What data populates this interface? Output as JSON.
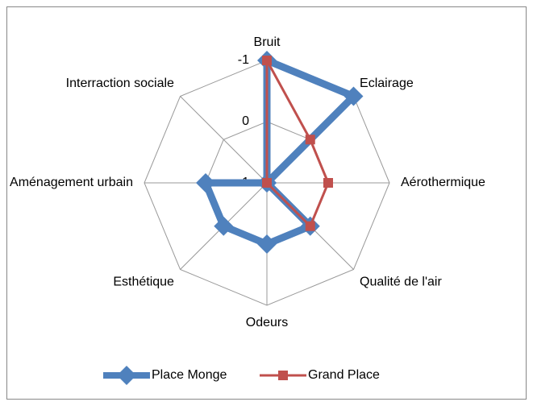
{
  "chart_data": {
    "type": "radar",
    "categories": [
      "Bruit",
      "Eclairage",
      "Aérothermique",
      "Qualité de l'air",
      "Odeurs",
      "Esthétique",
      "Aménagement urbain",
      "Interraction sociale"
    ],
    "series": [
      {
        "name": "Place Monge",
        "color": "#4f81bd",
        "marker": "diamond",
        "values": [
          -1,
          -1,
          1,
          0,
          0,
          0,
          0,
          1
        ]
      },
      {
        "name": "Grand Place",
        "color": "#c0504d",
        "marker": "square",
        "values": [
          -1,
          0,
          0,
          0,
          1,
          1,
          1,
          1
        ]
      }
    ],
    "rlim": [
      1,
      -1
    ],
    "rticks": [
      -1,
      0,
      1
    ],
    "grid": true,
    "legend": "bottom"
  }
}
